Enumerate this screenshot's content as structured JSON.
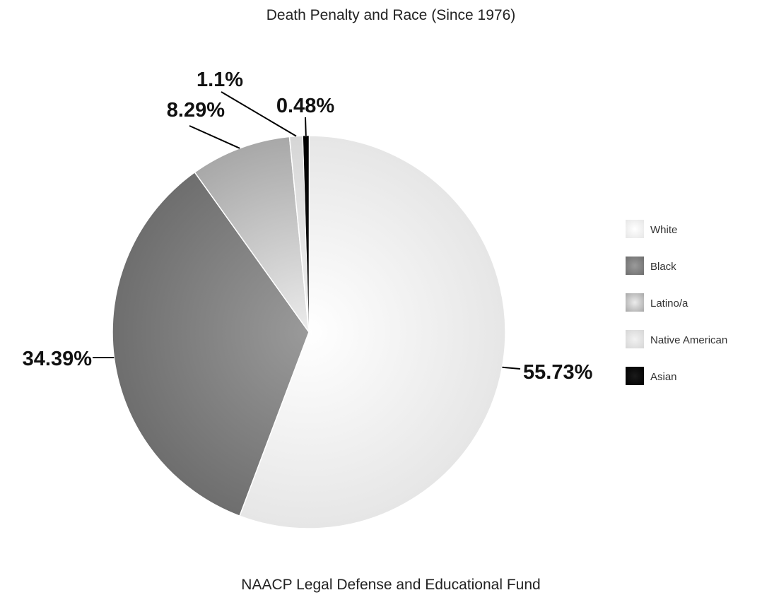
{
  "chart_data": {
    "type": "pie",
    "title": "Death Penalty and Race (Since 1976)",
    "source": "NAACP Legal Defense and Educational Fund",
    "legend_position": "right",
    "slices": [
      {
        "name": "White",
        "value": 55.73,
        "label": "55.73%",
        "color": "#e6e6e6",
        "color_light": "#ffffff"
      },
      {
        "name": "Black",
        "value": 34.39,
        "label": "34.39%",
        "color": "#6e6e6e",
        "color_light": "#9a9a9a"
      },
      {
        "name": "Latino/a",
        "value": 8.29,
        "label": "8.29%",
        "color": "#a8a8a8",
        "color_light": "#ececec"
      },
      {
        "name": "Native American",
        "value": 1.1,
        "label": "1.1%",
        "color": "#d6d6d6",
        "color_light": "#f2f2f2"
      },
      {
        "name": "Asian",
        "value": 0.48,
        "label": "0.48%",
        "color": "#000000",
        "color_light": "#1a1a1a"
      }
    ]
  }
}
